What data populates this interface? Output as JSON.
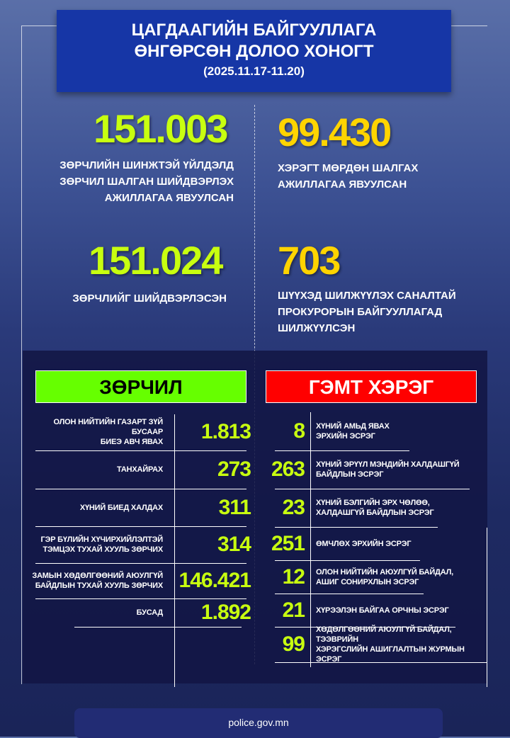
{
  "title": {
    "line1": "ЦАГДААГИЙН БАЙГУУЛЛАГА",
    "line2": "ӨНГӨРСӨН ДОЛОО ХОНОГТ",
    "period": "(2025.11.17-11.20)"
  },
  "stats": [
    {
      "value": "151.003",
      "label1": "ЗӨРЧЛИЙН ШИНЖТЭЙ ҮЙЛДЭЛД",
      "label2": "ЗӨРЧИЛ ШАЛГАН ШИЙДВЭРЛЭХ",
      "label3": "АЖИЛЛАГАА ЯВУУЛСАН"
    },
    {
      "value": "99.430",
      "label1": "ХЭРЭГТ МӨРДӨН ШАЛГАХ",
      "label2": "АЖИЛЛАГАА ЯВУУЛСАН"
    },
    {
      "value": "151.024",
      "label1": "ЗӨРЧЛИЙГ ШИЙДВЭРЛЭСЭН"
    },
    {
      "value": "703",
      "label1": "ШҮҮХЭД ШИЛЖҮҮЛЭХ САНАЛТАЙ",
      "label2": "ПРОКУРОРЫН БАЙГУУЛЛАГАД",
      "label3": "ШИЛЖҮҮЛСЭН"
    }
  ],
  "violations": {
    "header": "ЗӨРЧИЛ",
    "color": "#66ff00",
    "items": [
      {
        "l1": "ОЛОН НИЙТИЙН ГАЗАРТ ЗҮЙ БУСААР",
        "l2": "БИЕЭ АВЧ ЯВАХ",
        "value": "1.813"
      },
      {
        "l1": "ТАНХАЙРАХ",
        "l2": "",
        "value": "273"
      },
      {
        "l1": "ХҮНИЙ БИЕД ХАЛДАХ",
        "l2": "",
        "value": "311"
      },
      {
        "l1": "ГЭР БҮЛИЙН ХҮЧИРХИЙЛЭЛТЭЙ",
        "l2": "ТЭМЦЭХ ТУХАЙ ХУУЛЬ ЗӨРЧИХ",
        "value": "314"
      },
      {
        "l1": "ЗАМЫН ХӨДӨЛГӨӨНИЙ АЮУЛГҮЙ",
        "l2": "БАЙДЛЫН ТУХАЙ ХУУЛЬ ЗӨРЧИХ",
        "value": "146.421"
      },
      {
        "l1": "БУСАД",
        "l2": "",
        "value": "1.892"
      }
    ]
  },
  "crimes": {
    "header": "ГЭМТ ХЭРЭГ",
    "color": "#ff0000",
    "items": [
      {
        "value": "8",
        "l1": "ХҮНИЙ АМЬД ЯВАХ",
        "l2": "ЭРХИЙН ЭСРЭГ"
      },
      {
        "value": "263",
        "l1": "ХҮНИЙ ЭРҮҮЛ МЭНДИЙН ХАЛДАШГҮЙ",
        "l2": "БАЙДЛЫН ЭСРЭГ"
      },
      {
        "value": "23",
        "l1": "ХҮНИЙ БЭЛГИЙН ЭРХ ЧӨЛӨӨ,",
        "l2": "ХАЛДАШГҮЙ БАЙДЛЫН ЭСРЭГ"
      },
      {
        "value": "251",
        "l1": "ӨМЧЛӨХ ЭРХИЙН ЭСРЭГ",
        "l2": ""
      },
      {
        "value": "12",
        "l1": "ОЛОН НИЙТИЙН АЮУЛГҮЙ БАЙДАЛ,",
        "l2": "АШИГ СОНИРХЛЫН ЭСРЭГ"
      },
      {
        "value": "21",
        "l1": "ХҮРЭЭЛЭН БАЙГАА ОРЧНЫ ЭСРЭГ",
        "l2": ""
      },
      {
        "value": "99",
        "l1": "ХӨДӨЛГӨӨНИЙ АЮУЛГҮЙ БАЙДАЛ, ТЭЭВРИЙН",
        "l2": "ХЭРЭГСЛИЙН АШИГЛАЛТЫН ЖУРМЫН ЭСРЭГ"
      }
    ]
  },
  "footer": {
    "url": "police.gov.mn"
  }
}
